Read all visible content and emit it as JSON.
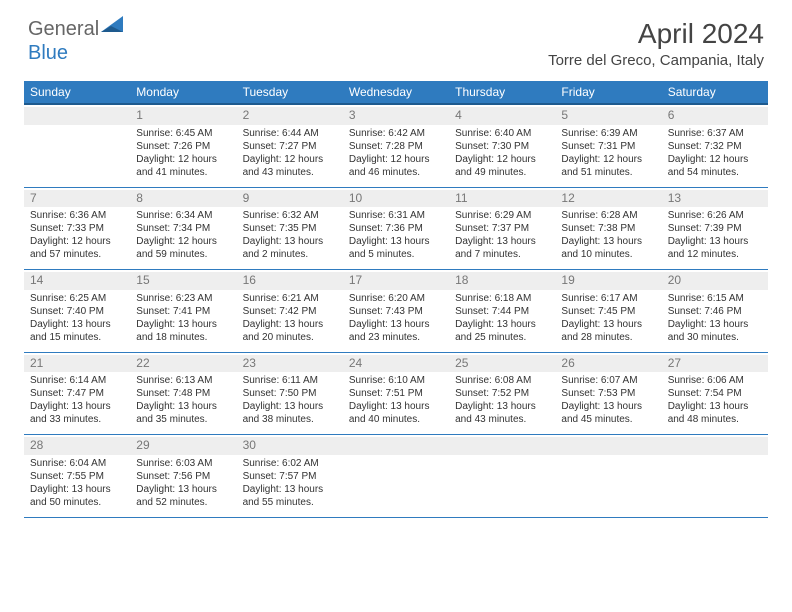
{
  "logo": {
    "text1": "General",
    "text2": "Blue"
  },
  "title": "April 2024",
  "location": "Torre del Greco, Campania, Italy",
  "header_bg": "#2f7bbf",
  "header_text_color": "#ffffff",
  "daynum_bg": "#eeeeee",
  "rule_color": "#2f7bbf",
  "weekdays": [
    "Sunday",
    "Monday",
    "Tuesday",
    "Wednesday",
    "Thursday",
    "Friday",
    "Saturday"
  ],
  "weeks": [
    [
      null,
      {
        "d": "1",
        "r": "6:45 AM",
        "s": "7:26 PM",
        "dl": "12 hours and 41 minutes."
      },
      {
        "d": "2",
        "r": "6:44 AM",
        "s": "7:27 PM",
        "dl": "12 hours and 43 minutes."
      },
      {
        "d": "3",
        "r": "6:42 AM",
        "s": "7:28 PM",
        "dl": "12 hours and 46 minutes."
      },
      {
        "d": "4",
        "r": "6:40 AM",
        "s": "7:30 PM",
        "dl": "12 hours and 49 minutes."
      },
      {
        "d": "5",
        "r": "6:39 AM",
        "s": "7:31 PM",
        "dl": "12 hours and 51 minutes."
      },
      {
        "d": "6",
        "r": "6:37 AM",
        "s": "7:32 PM",
        "dl": "12 hours and 54 minutes."
      }
    ],
    [
      {
        "d": "7",
        "r": "6:36 AM",
        "s": "7:33 PM",
        "dl": "12 hours and 57 minutes."
      },
      {
        "d": "8",
        "r": "6:34 AM",
        "s": "7:34 PM",
        "dl": "12 hours and 59 minutes."
      },
      {
        "d": "9",
        "r": "6:32 AM",
        "s": "7:35 PM",
        "dl": "13 hours and 2 minutes."
      },
      {
        "d": "10",
        "r": "6:31 AM",
        "s": "7:36 PM",
        "dl": "13 hours and 5 minutes."
      },
      {
        "d": "11",
        "r": "6:29 AM",
        "s": "7:37 PM",
        "dl": "13 hours and 7 minutes."
      },
      {
        "d": "12",
        "r": "6:28 AM",
        "s": "7:38 PM",
        "dl": "13 hours and 10 minutes."
      },
      {
        "d": "13",
        "r": "6:26 AM",
        "s": "7:39 PM",
        "dl": "13 hours and 12 minutes."
      }
    ],
    [
      {
        "d": "14",
        "r": "6:25 AM",
        "s": "7:40 PM",
        "dl": "13 hours and 15 minutes."
      },
      {
        "d": "15",
        "r": "6:23 AM",
        "s": "7:41 PM",
        "dl": "13 hours and 18 minutes."
      },
      {
        "d": "16",
        "r": "6:21 AM",
        "s": "7:42 PM",
        "dl": "13 hours and 20 minutes."
      },
      {
        "d": "17",
        "r": "6:20 AM",
        "s": "7:43 PM",
        "dl": "13 hours and 23 minutes."
      },
      {
        "d": "18",
        "r": "6:18 AM",
        "s": "7:44 PM",
        "dl": "13 hours and 25 minutes."
      },
      {
        "d": "19",
        "r": "6:17 AM",
        "s": "7:45 PM",
        "dl": "13 hours and 28 minutes."
      },
      {
        "d": "20",
        "r": "6:15 AM",
        "s": "7:46 PM",
        "dl": "13 hours and 30 minutes."
      }
    ],
    [
      {
        "d": "21",
        "r": "6:14 AM",
        "s": "7:47 PM",
        "dl": "13 hours and 33 minutes."
      },
      {
        "d": "22",
        "r": "6:13 AM",
        "s": "7:48 PM",
        "dl": "13 hours and 35 minutes."
      },
      {
        "d": "23",
        "r": "6:11 AM",
        "s": "7:50 PM",
        "dl": "13 hours and 38 minutes."
      },
      {
        "d": "24",
        "r": "6:10 AM",
        "s": "7:51 PM",
        "dl": "13 hours and 40 minutes."
      },
      {
        "d": "25",
        "r": "6:08 AM",
        "s": "7:52 PM",
        "dl": "13 hours and 43 minutes."
      },
      {
        "d": "26",
        "r": "6:07 AM",
        "s": "7:53 PM",
        "dl": "13 hours and 45 minutes."
      },
      {
        "d": "27",
        "r": "6:06 AM",
        "s": "7:54 PM",
        "dl": "13 hours and 48 minutes."
      }
    ],
    [
      {
        "d": "28",
        "r": "6:04 AM",
        "s": "7:55 PM",
        "dl": "13 hours and 50 minutes."
      },
      {
        "d": "29",
        "r": "6:03 AM",
        "s": "7:56 PM",
        "dl": "13 hours and 52 minutes."
      },
      {
        "d": "30",
        "r": "6:02 AM",
        "s": "7:57 PM",
        "dl": "13 hours and 55 minutes."
      },
      null,
      null,
      null,
      null
    ]
  ],
  "labels": {
    "sunrise": "Sunrise:",
    "sunset": "Sunset:",
    "daylight": "Daylight:"
  }
}
